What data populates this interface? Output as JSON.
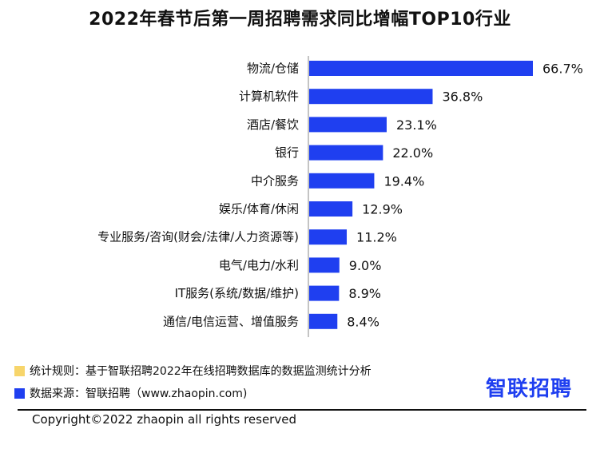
{
  "chart_data": {
    "type": "bar",
    "orientation": "horizontal",
    "title": "2022年春节后第一周招聘需求同比增幅TOP10行业",
    "categories": [
      "物流/仓储",
      "计算机软件",
      "酒店/餐饮",
      "银行",
      "中介服务",
      "娱乐/体育/休闲",
      "专业服务/咨询(财会/法律/人力资源等)",
      "电气/电力/水利",
      "IT服务(系统/数据/维护)",
      "通信/电信运营、增值服务"
    ],
    "values": [
      66.7,
      36.8,
      23.1,
      22.0,
      19.4,
      12.9,
      11.2,
      9.0,
      8.9,
      8.4
    ],
    "value_labels": [
      "66.7%",
      "36.8%",
      "23.1%",
      "22.0%",
      "19.4%",
      "12.9%",
      "11.2%",
      "9.0%",
      "8.9%",
      "8.4%"
    ],
    "xlim": [
      0,
      66.7
    ],
    "grid": false,
    "bar_color": "#1f3ff0"
  },
  "notes": [
    {
      "text": "统计规则：基于智联招聘2022年在线招聘数据库的数据监测统计分析",
      "color": "#f7d56b"
    },
    {
      "text": "数据来源：智联招聘（www.zhaopin.com)",
      "color": "#1f3ff0"
    }
  ],
  "logo": {
    "text": "智联招聘",
    "color": "#1f3ff0"
  },
  "copyright": "Copyright©2022 zhaopin all rights reserved"
}
